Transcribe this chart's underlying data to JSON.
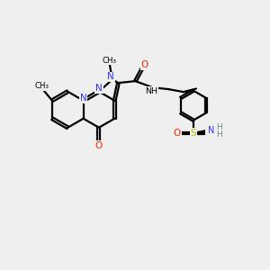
{
  "bg_color": "#efefef",
  "bond_color": "#000000",
  "nitrogen_color": "#3333ff",
  "oxygen_color": "#ff2200",
  "sulfur_color": "#bbbb00",
  "nh_color": "#778888",
  "line_width": 1.6,
  "fig_size": [
    3.0,
    3.0
  ],
  "dpi": 100,
  "xlim": [
    0,
    10
  ],
  "ylim": [
    0,
    10
  ]
}
